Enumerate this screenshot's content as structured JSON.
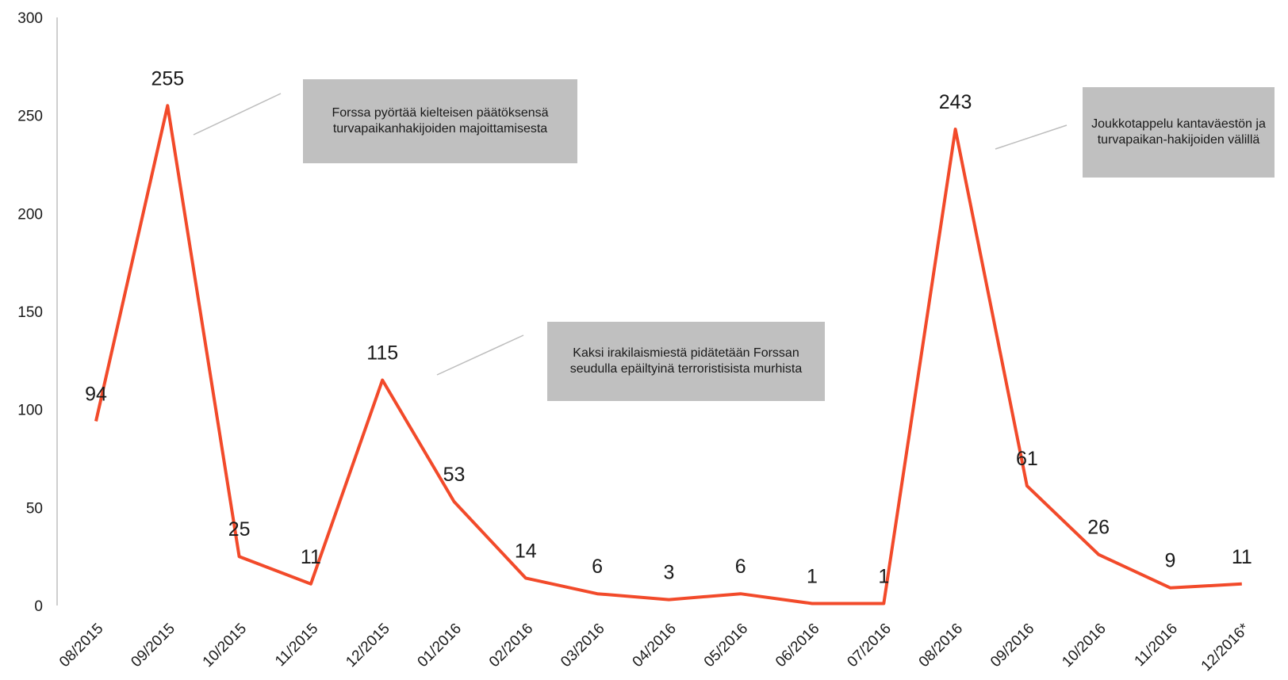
{
  "chart_data": {
    "type": "line",
    "categories": [
      "08/2015",
      "09/2015",
      "10/2015",
      "11/2015",
      "12/2015",
      "01/2016",
      "02/2016",
      "03/2016",
      "04/2016",
      "05/2016",
      "06/2016",
      "07/2016",
      "08/2016",
      "09/2016",
      "10/2016",
      "11/2016",
      "12/2016*"
    ],
    "values": [
      94,
      255,
      25,
      11,
      115,
      53,
      14,
      6,
      3,
      6,
      1,
      1,
      243,
      61,
      26,
      9,
      11
    ],
    "ylim": [
      0,
      300
    ],
    "yticks": [
      0,
      50,
      100,
      150,
      200,
      250,
      300
    ],
    "line_color": "#f24a2a",
    "grid": false,
    "legend": "none",
    "annotations": [
      {
        "text": "Forssa pyörtää kielteisen päätöksensä turvapaikanhakijoiden majoittamisesta",
        "category": "09/2015"
      },
      {
        "text": "Kaksi irakilaismiestä pidätetään Forssan seudulla epäiltyinä terroristisista murhista",
        "category": "12/2015"
      },
      {
        "text": "Joukkotappelu kantaväestön ja turvapaikan-hakijoiden välillä",
        "category": "08/2016"
      }
    ]
  }
}
